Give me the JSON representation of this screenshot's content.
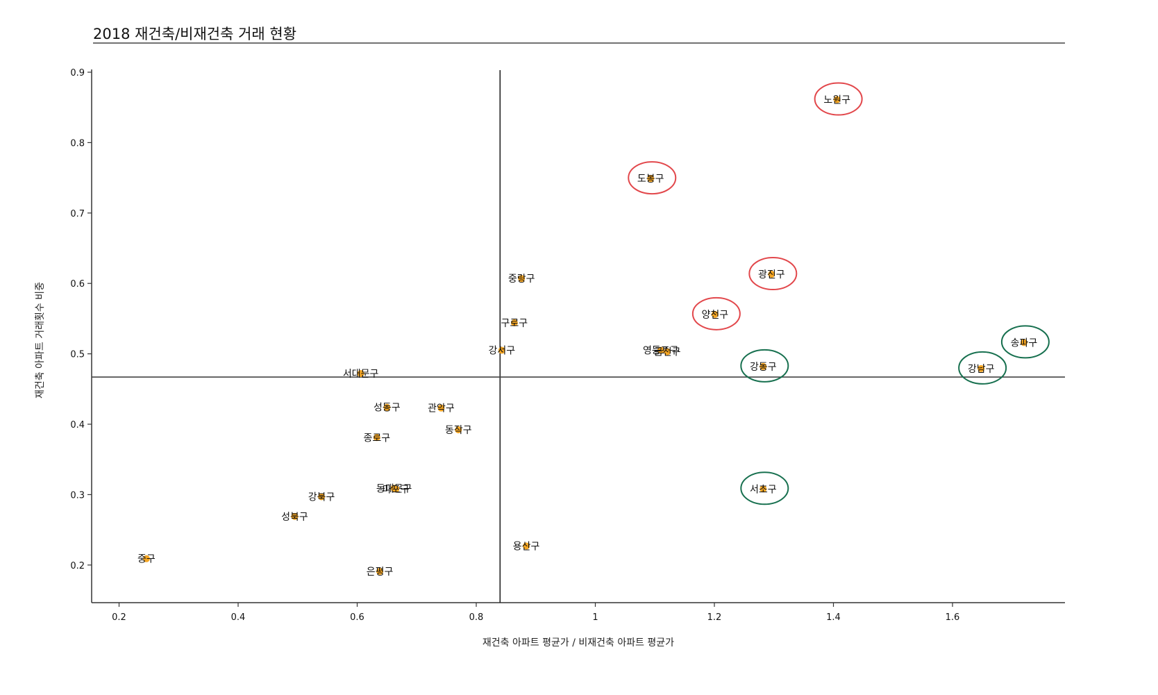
{
  "chart_data": {
    "type": "scatter",
    "title": "2018 재건축/비재건축 거래 현황",
    "xlabel": "재건축 아파트 평균가 / 비재건축 아파트 평균가",
    "ylabel": "재건축 아파트 거래횟수 비중",
    "xlim": [
      0.155,
      1.79
    ],
    "ylim": [
      0.145,
      0.905
    ],
    "xticks": [
      0.2,
      0.4,
      0.6,
      0.8,
      1,
      1.2,
      1.4,
      1.6
    ],
    "xtick_labels": [
      "0.2",
      "0.4",
      "0.6",
      "0.8",
      "1",
      "1.2",
      "1.4",
      "1.6"
    ],
    "yticks": [
      0.2,
      0.3,
      0.4,
      0.5,
      0.6,
      0.7,
      0.8,
      0.9
    ],
    "ytick_labels": [
      "0.2",
      "0.3",
      "0.4",
      "0.5",
      "0.6",
      "0.7",
      "0.8",
      "0.9"
    ],
    "grid": false,
    "reference_lines": {
      "x_mean": 0.84,
      "y_mean": 0.467
    },
    "point_color": "#f5a623",
    "points": [
      {
        "name": "노원구",
        "x": 1.406,
        "y": 0.861,
        "highlight": "red"
      },
      {
        "name": "도봉구",
        "x": 1.093,
        "y": 0.749,
        "highlight": "red"
      },
      {
        "name": "광진구",
        "x": 1.296,
        "y": 0.613,
        "highlight": "red"
      },
      {
        "name": "양천구",
        "x": 1.201,
        "y": 0.556,
        "highlight": "red"
      },
      {
        "name": "송파구",
        "x": 1.72,
        "y": 0.516,
        "highlight": "green"
      },
      {
        "name": "강남구",
        "x": 1.648,
        "y": 0.479,
        "highlight": "green"
      },
      {
        "name": "강동구",
        "x": 1.282,
        "y": 0.482,
        "highlight": "green"
      },
      {
        "name": "서초구",
        "x": 1.282,
        "y": 0.308,
        "highlight": "green"
      },
      {
        "name": "영등포구",
        "x": 1.11,
        "y": 0.505,
        "highlight": ""
      },
      {
        "name": "금천구",
        "x": 1.121,
        "y": 0.503,
        "highlight": ""
      },
      {
        "name": "중랑구",
        "x": 0.876,
        "y": 0.607,
        "highlight": ""
      },
      {
        "name": "구로구",
        "x": 0.864,
        "y": 0.544,
        "highlight": ""
      },
      {
        "name": "강서구",
        "x": 0.843,
        "y": 0.505,
        "highlight": ""
      },
      {
        "name": "서대문구",
        "x": 0.606,
        "y": 0.472,
        "highlight": ""
      },
      {
        "name": "성동구",
        "x": 0.65,
        "y": 0.424,
        "highlight": ""
      },
      {
        "name": "관악구",
        "x": 0.741,
        "y": 0.423,
        "highlight": ""
      },
      {
        "name": "동작구",
        "x": 0.77,
        "y": 0.392,
        "highlight": ""
      },
      {
        "name": "종로구",
        "x": 0.633,
        "y": 0.381,
        "highlight": ""
      },
      {
        "name": "동대문구",
        "x": 0.662,
        "y": 0.309,
        "highlight": ""
      },
      {
        "name": "마포구",
        "x": 0.665,
        "y": 0.308,
        "highlight": ""
      },
      {
        "name": "강북구",
        "x": 0.54,
        "y": 0.297,
        "highlight": ""
      },
      {
        "name": "성북구",
        "x": 0.495,
        "y": 0.269,
        "highlight": ""
      },
      {
        "name": "용산구",
        "x": 0.884,
        "y": 0.227,
        "highlight": ""
      },
      {
        "name": "중구",
        "x": 0.246,
        "y": 0.209,
        "highlight": ""
      },
      {
        "name": "은평구",
        "x": 0.638,
        "y": 0.191,
        "highlight": ""
      }
    ],
    "highlight_colors": {
      "red": "#e2474b",
      "green": "#17704f"
    }
  }
}
